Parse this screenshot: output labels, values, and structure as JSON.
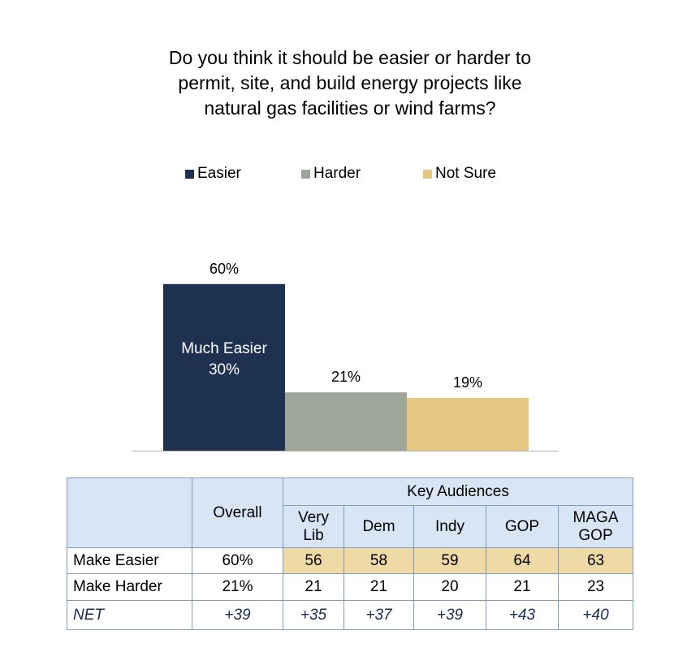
{
  "title_lines": [
    "Do you think it should be easier or harder to",
    "permit, site, and build energy projects like",
    "natural gas facilities or wind farms?"
  ],
  "colors": {
    "easier": "#1e3150",
    "harder": "#a0a59a",
    "not_sure": "#e6c782",
    "header_bg": "#d8e5f5",
    "highlight": "#efd9a4"
  },
  "chart_data": {
    "type": "bar",
    "categories": [
      "Easier",
      "Harder",
      "Not Sure"
    ],
    "values": [
      60,
      21,
      19
    ],
    "value_labels": [
      "60%",
      "21%",
      "19%"
    ],
    "legend": [
      "Easier",
      "Harder",
      "Not Sure"
    ],
    "legend_position": "top",
    "inner_label": {
      "text": "Much Easier",
      "value": "30%"
    },
    "grid": false,
    "ylim": [
      0,
      60
    ]
  },
  "table": {
    "overall_header": "Overall",
    "group_header": "Key Audiences",
    "audience_headers": [
      [
        "Very",
        "Lib"
      ],
      [
        "Dem"
      ],
      [
        "Indy"
      ],
      [
        "GOP"
      ],
      [
        "MAGA",
        "GOP"
      ]
    ],
    "rows": [
      {
        "label": "Make Easier",
        "overall": "60%",
        "values": [
          "56",
          "58",
          "59",
          "64",
          "63"
        ]
      },
      {
        "label": "Make Harder",
        "overall": "21%",
        "values": [
          "21",
          "21",
          "20",
          "21",
          "23"
        ]
      },
      {
        "label": "NET",
        "overall": "+39",
        "values": [
          "+35",
          "+37",
          "+39",
          "+43",
          "+40"
        ]
      }
    ]
  }
}
